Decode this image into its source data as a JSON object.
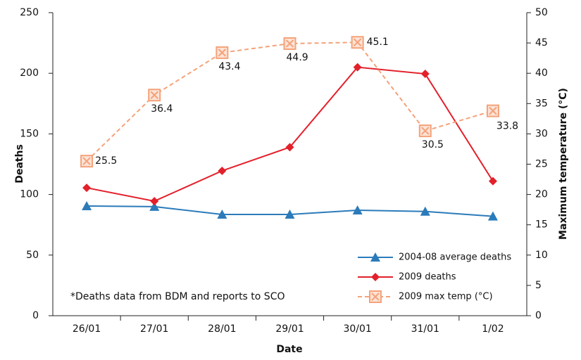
{
  "chart_data": {
    "type": "line",
    "x_label": "Date",
    "y_label": "Deaths",
    "y2_label": "Maximum temperature (°C)",
    "annotation": "*Deaths data from BDM and reports to SCO",
    "categories": [
      "26/01",
      "27/01",
      "28/01",
      "29/01",
      "30/01",
      "31/01",
      "1/02"
    ],
    "series": [
      {
        "name": "2004-08 average deaths",
        "color": "#2b7bba",
        "marker": "triangle",
        "values": [
          90.5,
          90,
          83.5,
          83.5,
          87,
          86,
          82
        ]
      },
      {
        "name": "2009 deaths",
        "color": "#e3202b",
        "marker": "diamond",
        "values": [
          105.5,
          94.5,
          119.5,
          139,
          205,
          199.5,
          111
        ]
      },
      {
        "name": "2009 max temp (°C)",
        "color": "#f4a27a",
        "marker": "square-x",
        "dashed": true,
        "axis": "y2",
        "data_labels": true,
        "values": [
          25.5,
          36.4,
          43.4,
          44.9,
          45.1,
          30.5,
          33.8
        ]
      }
    ],
    "ylim": [
      0,
      250
    ],
    "yticks": [
      0,
      50,
      100,
      150,
      200,
      250
    ],
    "y2lim": [
      0,
      50
    ],
    "y2ticks": [
      0,
      5,
      10,
      15,
      20,
      25,
      30,
      35,
      40,
      45,
      50
    ],
    "grid": false,
    "legend": "lower right"
  }
}
